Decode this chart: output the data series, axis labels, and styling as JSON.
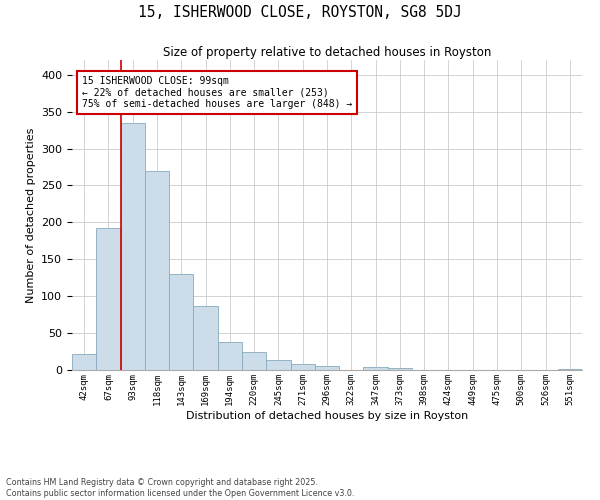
{
  "title": "15, ISHERWOOD CLOSE, ROYSTON, SG8 5DJ",
  "subtitle": "Size of property relative to detached houses in Royston",
  "xlabel": "Distribution of detached houses by size in Royston",
  "ylabel": "Number of detached properties",
  "categories": [
    "42sqm",
    "67sqm",
    "93sqm",
    "118sqm",
    "143sqm",
    "169sqm",
    "194sqm",
    "220sqm",
    "245sqm",
    "271sqm",
    "296sqm",
    "322sqm",
    "347sqm",
    "373sqm",
    "398sqm",
    "424sqm",
    "449sqm",
    "475sqm",
    "500sqm",
    "526sqm",
    "551sqm"
  ],
  "values": [
    22,
    193,
    335,
    270,
    130,
    87,
    38,
    25,
    14,
    8,
    5,
    0,
    4,
    3,
    0,
    0,
    0,
    0,
    0,
    0,
    2
  ],
  "bar_color": "#ccdce8",
  "bar_edge_color": "#88aabf",
  "grid_color": "#cccccc",
  "vline_x": 2.0,
  "annotation_text": "15 ISHERWOOD CLOSE: 99sqm\n← 22% of detached houses are smaller (253)\n75% of semi-detached houses are larger (848) →",
  "annotation_box_color": "#ffffff",
  "annotation_box_edge": "#cc0000",
  "annotation_line_color": "#cc0000",
  "footer": "Contains HM Land Registry data © Crown copyright and database right 2025.\nContains public sector information licensed under the Open Government Licence v3.0.",
  "ylim": [
    0,
    420
  ],
  "figsize": [
    6.0,
    5.0
  ],
  "dpi": 100
}
